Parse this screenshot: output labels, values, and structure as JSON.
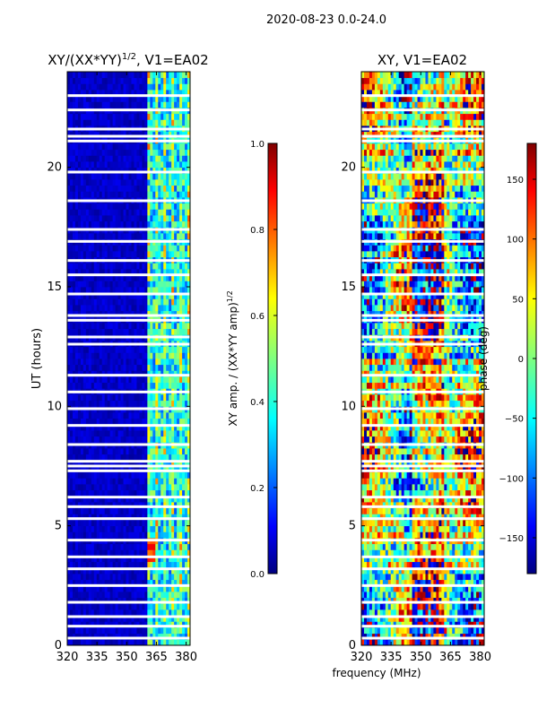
{
  "figure": {
    "suptitle": "2020-08-23 0.0-24.0",
    "shared_xlabel": "frequency (MHz)"
  },
  "chart_data": [
    {
      "type": "heatmap",
      "title": "XY/(XX*YY)",
      "title_exponent": "1/2",
      "title_suffix": ", V1=EA02",
      "ylabel": "UT (hours)",
      "xlim": [
        320,
        382
      ],
      "ylim": [
        0,
        24
      ],
      "x_ticks": [
        "320",
        "335",
        "350",
        "365",
        "380"
      ],
      "y_ticks": [
        "0",
        "5",
        "10",
        "15",
        "20"
      ],
      "colorbar": {
        "label": "XY amp. / (XX*YY amp)",
        "label_exponent": "1/2",
        "range": [
          0.0,
          1.0
        ],
        "ticks": [
          "0.0",
          "0.2",
          "0.4",
          "0.6",
          "0.8",
          "1.0"
        ]
      },
      "structure_note_values": {
        "rfi_channels_start_mhz": 360,
        "flagged_rows_ut_hours": [
          21.1,
          21.4,
          13.8,
          7.3,
          7.7,
          1.8,
          1.2
        ]
      }
    },
    {
      "type": "heatmap",
      "title": "XY, V1=EA02",
      "ylabel": "",
      "xlim": [
        320,
        382
      ],
      "ylim": [
        0,
        24
      ],
      "x_ticks": [
        "320",
        "335",
        "350",
        "365",
        "380"
      ],
      "y_ticks": [
        "0",
        "5",
        "10",
        "15",
        "20"
      ],
      "colorbar": {
        "label": "phase (deg)",
        "range": [
          -180,
          180
        ],
        "ticks": [
          "150",
          "100",
          "50",
          "0",
          "−50",
          "−100",
          "−150"
        ]
      }
    }
  ],
  "colormap": [
    "#00007f",
    "#0000ff",
    "#007fff",
    "#00ffff",
    "#7fff7f",
    "#ffff00",
    "#ff7f00",
    "#ff0000",
    "#7f0000"
  ]
}
